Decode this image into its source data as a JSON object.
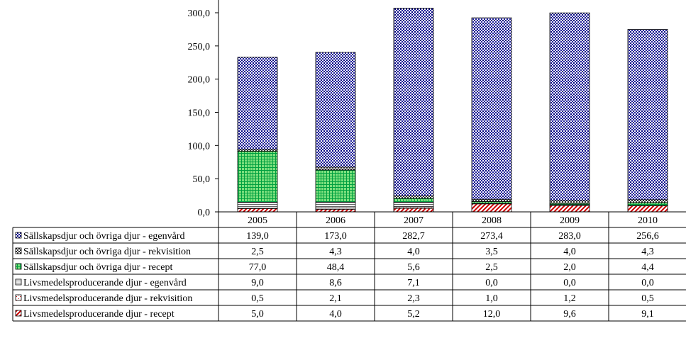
{
  "chart_data": {
    "type": "bar",
    "stacked": true,
    "categories": [
      "2005",
      "2006",
      "2007",
      "2008",
      "2009",
      "2010"
    ],
    "ylim": [
      0,
      300
    ],
    "yticks": [
      0,
      50,
      100,
      150,
      200,
      250,
      300
    ],
    "ytick_labels": [
      "0,0",
      "50,0",
      "100,0",
      "150,0",
      "200,0",
      "250,0",
      "300,0"
    ],
    "series": [
      {
        "name": "Livsmedelsproducerande djur - recept",
        "pattern": "diag",
        "color": "#cc0000",
        "values": [
          5.0,
          4.0,
          5.2,
          12.0,
          9.6,
          9.1
        ],
        "labels": [
          "5,0",
          "4,0",
          "5,2",
          "12,0",
          "9,6",
          "9,1"
        ]
      },
      {
        "name": "Livsmedelsproducerande djur - rekvisition",
        "pattern": "dots",
        "color": "#cc0000",
        "values": [
          0.5,
          2.1,
          2.3,
          1.0,
          1.2,
          0.5
        ],
        "labels": [
          "0,5",
          "2,1",
          "2,3",
          "1,0",
          "1,2",
          "0,5"
        ]
      },
      {
        "name": "Livsmedelsproducerande djur - egenvård",
        "pattern": "hlines",
        "color": "#7f7f7f",
        "values": [
          9.0,
          8.6,
          7.1,
          0.0,
          0.0,
          0.0
        ],
        "labels": [
          "9,0",
          "8,6",
          "7,1",
          "0,0",
          "0,0",
          "0,0"
        ]
      },
      {
        "name": "Sällskapsdjur och övriga djur - recept",
        "pattern": "grid",
        "color": "#00b050",
        "values": [
          77.0,
          48.4,
          5.6,
          2.5,
          2.0,
          4.4
        ],
        "labels": [
          "77,0",
          "48,4",
          "5,6",
          "2,5",
          "2,0",
          "4,4"
        ]
      },
      {
        "name": "Sällskapsdjur och övriga djur - rekvisition",
        "pattern": "checker",
        "color": "#333333",
        "values": [
          2.5,
          4.3,
          4.0,
          3.5,
          4.0,
          4.3
        ],
        "labels": [
          "2,5",
          "4,3",
          "4,0",
          "3,5",
          "4,0",
          "4,3"
        ]
      },
      {
        "name": "Sällskapsdjur och övriga djur - egenvård",
        "pattern": "bluedots",
        "color": "#000080",
        "values": [
          139.0,
          173.0,
          282.7,
          273.4,
          283.0,
          256.6
        ],
        "labels": [
          "139,0",
          "173,0",
          "282,7",
          "273,4",
          "283,0",
          "256,6"
        ]
      }
    ],
    "table_order": [
      5,
      4,
      3,
      2,
      1,
      0
    ]
  }
}
